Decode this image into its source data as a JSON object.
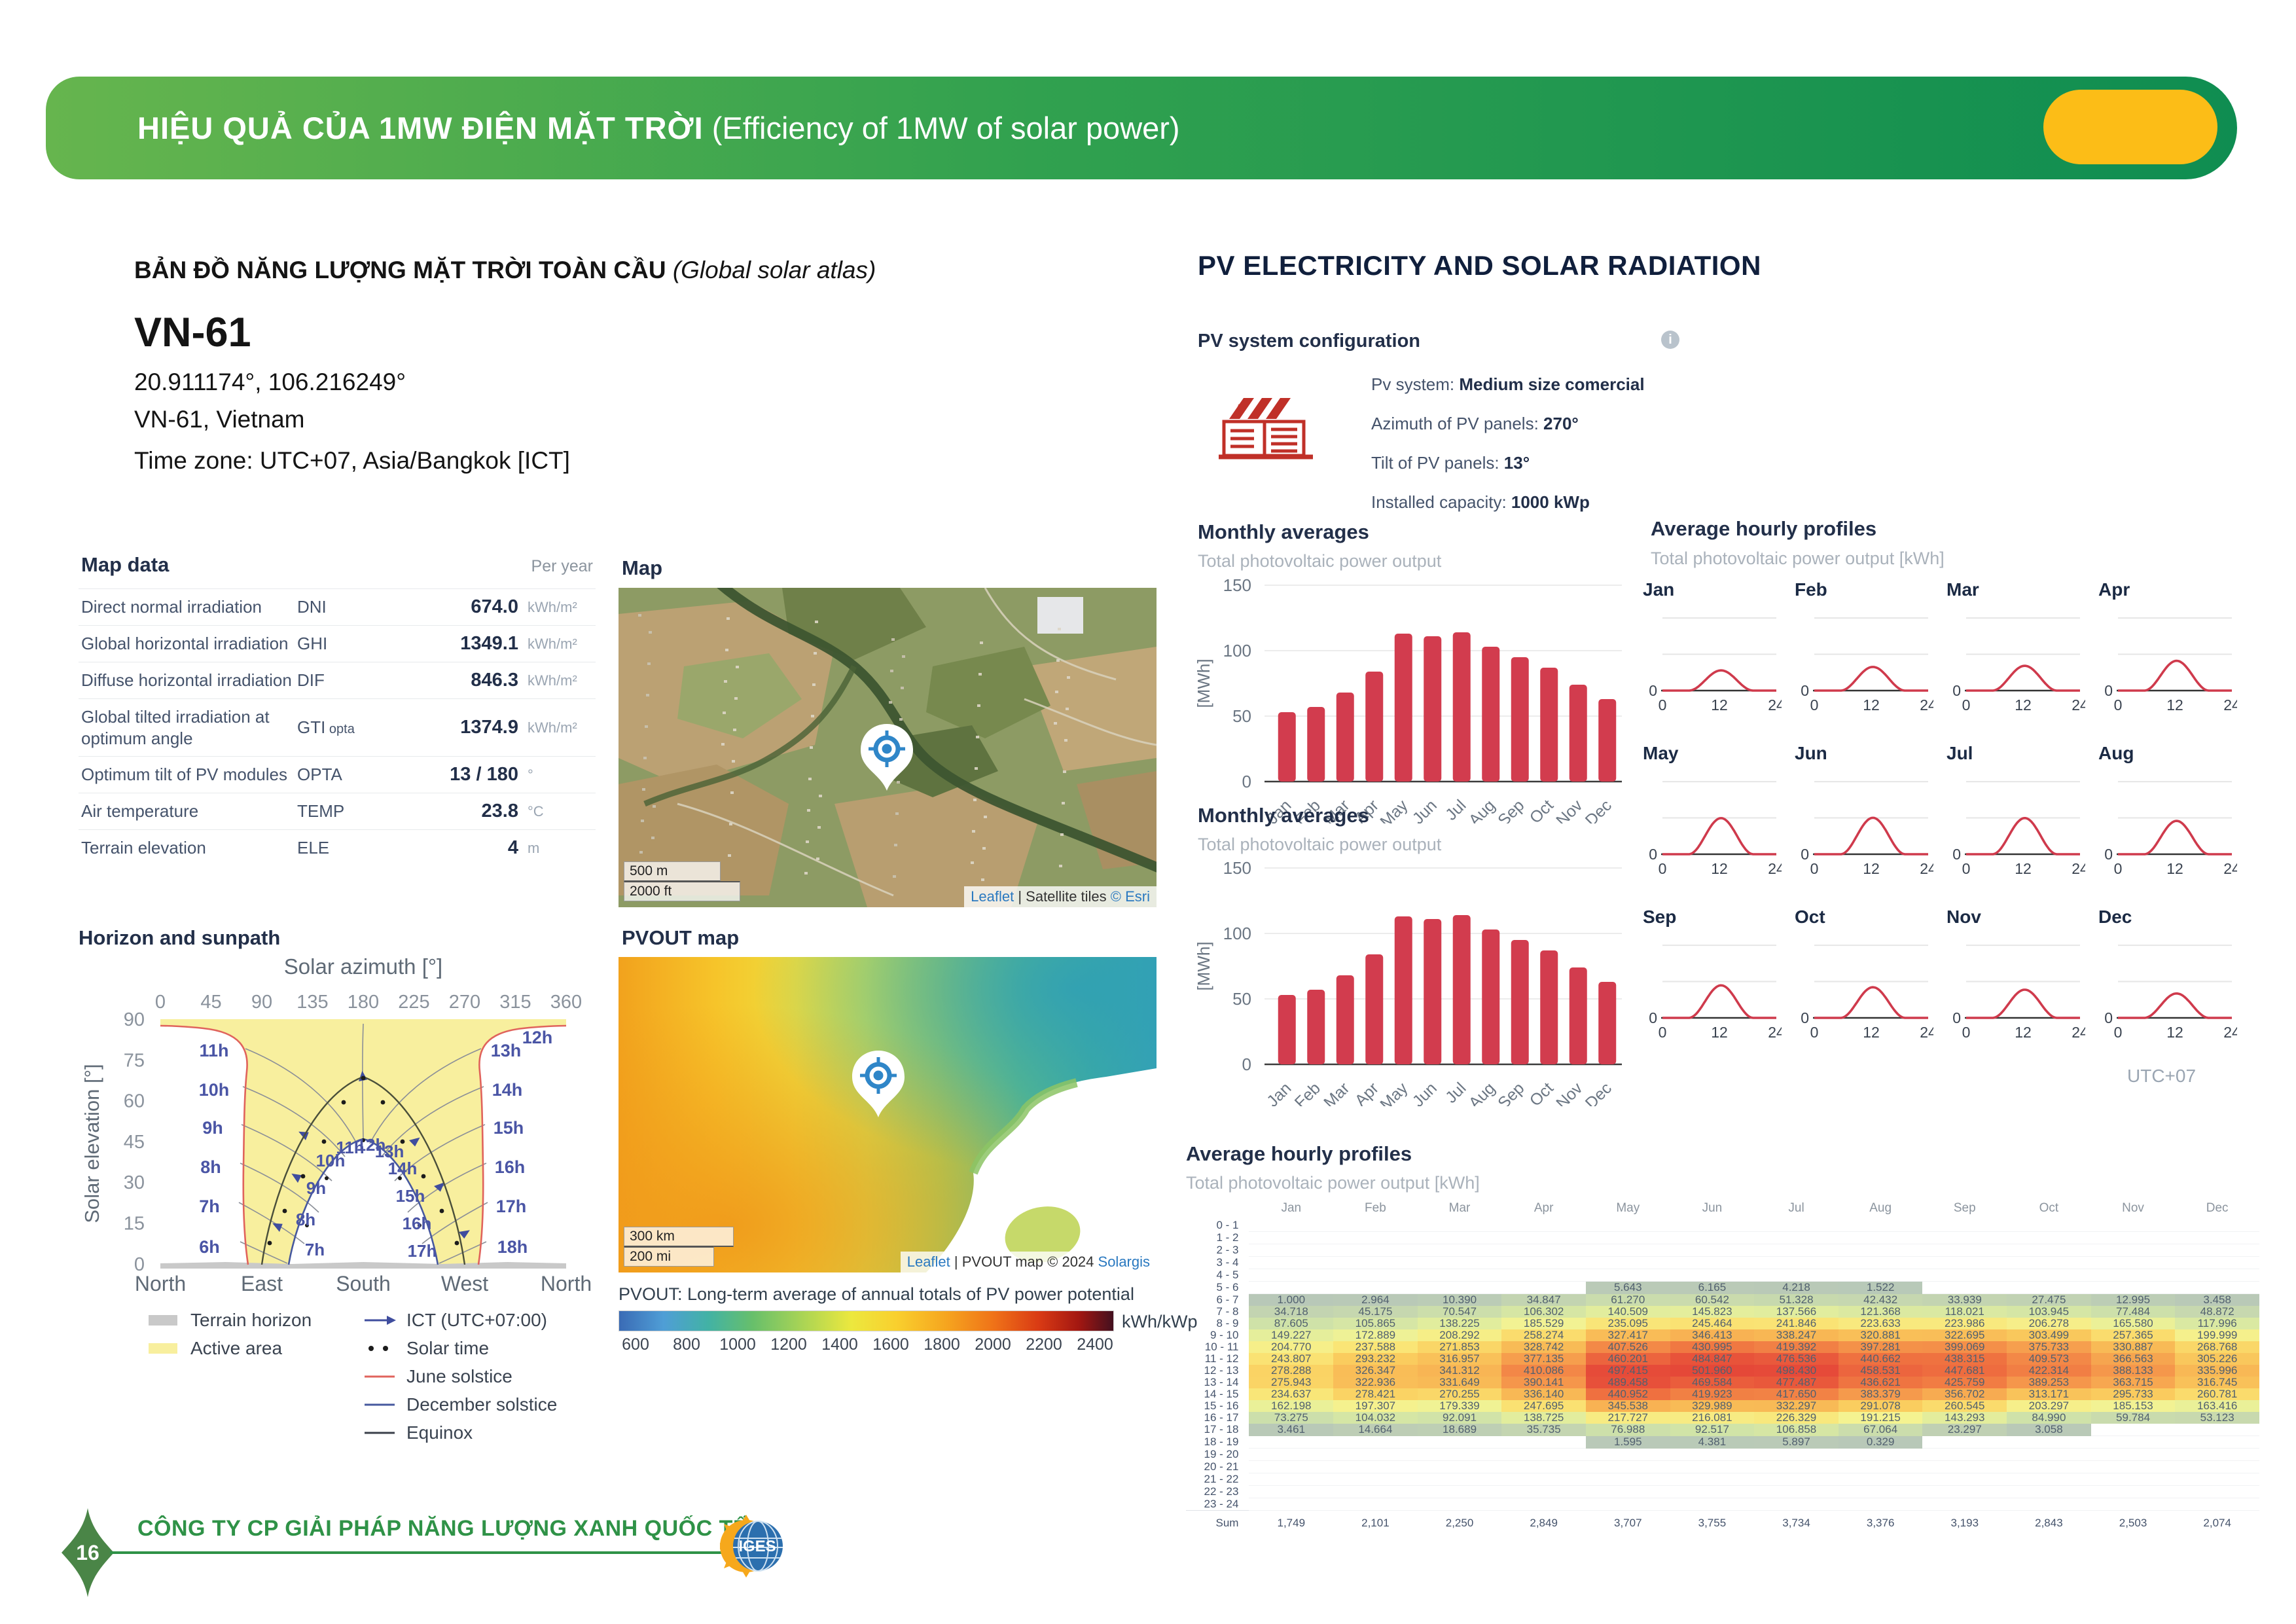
{
  "header": {
    "title_bold": "HIỆU QUẢ CỦA 1MW ĐIỆN MẶT TRỜI",
    "title_light": " (Efficiency of 1MW of solar power)"
  },
  "atlas": {
    "heading_bold": "BẢN ĐỒ NĂNG LƯỢNG MẶT TRỜI TOÀN CẦU",
    "heading_italic": " (Global solar atlas)",
    "site_id": "VN-61",
    "coordinates": "20.911174°, 106.216249°",
    "location": "VN-61, Vietnam",
    "timezone": "Time zone: UTC+07, Asia/Bangkok [ICT]"
  },
  "map_data": {
    "title": "Map data",
    "period": "Per year",
    "rows": [
      {
        "label": "Direct normal irradiation",
        "code": "DNI",
        "sub": "",
        "value": "674.0",
        "unit": "kWh/m²"
      },
      {
        "label": "Global horizontal irradiation",
        "code": "GHI",
        "sub": "",
        "value": "1349.1",
        "unit": "kWh/m²"
      },
      {
        "label": "Diffuse horizontal irradiation",
        "code": "DIF",
        "sub": "",
        "value": "846.3",
        "unit": "kWh/m²"
      },
      {
        "label": "Global tilted irradiation at optimum angle",
        "code": "GTI",
        "sub": "opta",
        "value": "1374.9",
        "unit": "kWh/m²"
      },
      {
        "label": "Optimum tilt of PV modules",
        "code": "OPTA",
        "sub": "",
        "value": "13 / 180",
        "unit": "°"
      },
      {
        "label": "Air temperature",
        "code": "TEMP",
        "sub": "",
        "value": "23.8",
        "unit": "°C"
      },
      {
        "label": "Terrain elevation",
        "code": "ELE",
        "sub": "",
        "value": "4",
        "unit": "m"
      }
    ]
  },
  "sunpath": {
    "title": "Horizon and sunpath",
    "xaxis_label": "Solar azimuth [°]",
    "yaxis_label": "Solar elevation [°]",
    "xticks": [
      "0",
      "45",
      "90",
      "135",
      "180",
      "225",
      "270",
      "315",
      "360"
    ],
    "yticks": [
      "90",
      "75",
      "60",
      "45",
      "30",
      "15",
      "0"
    ],
    "compass": [
      "North",
      "East",
      "South",
      "West",
      "North"
    ],
    "hours_left": [
      "6h",
      "7h",
      "8h",
      "9h",
      "10h",
      "11h"
    ],
    "hours_right": [
      "13h",
      "14h",
      "15h",
      "16h",
      "17h",
      "18h"
    ],
    "hour_top": "12h",
    "hours_inner": [
      "7h",
      "8h",
      "9h",
      "10h",
      "11h",
      "12h",
      "13h",
      "14h",
      "15h",
      "16h",
      "17h"
    ],
    "legend": [
      {
        "type": "swatch",
        "color": "#c9c9c9",
        "label": "Terrain horizon"
      },
      {
        "type": "swatch",
        "color": "#f8ef9e",
        "label": "Active area"
      },
      {
        "type": "arrow",
        "color": "#3f4d9e",
        "label": "ICT (UTC+07:00)"
      },
      {
        "type": "dots",
        "color": "#1c1c1c",
        "label": "Solar time"
      },
      {
        "type": "line",
        "color": "#e0635c",
        "label": "June solstice"
      },
      {
        "type": "line",
        "color": "#46589e",
        "label": "December solstice"
      },
      {
        "type": "line",
        "color": "#3a3f4a",
        "label": "Equinox"
      }
    ]
  },
  "map_panel": {
    "title": "Map",
    "scale_top": "500 m",
    "scale_bottom": "2000 ft",
    "attrib_link": "Leaflet",
    "attrib_mid": " | Satellite tiles ",
    "attrib_right": "© Esri"
  },
  "pvout_panel": {
    "title": "PVOUT map",
    "scale_top": "300 km",
    "scale_bottom": "200 mi",
    "attrib_link": "Leaflet",
    "attrib_mid": " | PVOUT map © 2024 ",
    "attrib_right": "Solargis",
    "caption": "PVOUT: Long-term average of annual totals of PV power potential",
    "unit": "kWh/kWp",
    "ticks": [
      "600",
      "800",
      "1000",
      "1200",
      "1400",
      "1600",
      "1800",
      "2000",
      "2200",
      "2400"
    ]
  },
  "pv_section": {
    "title": "PV ELECTRICITY AND SOLAR RADIATION",
    "config_title": "PV system configuration",
    "info_glyph": "i",
    "config": [
      {
        "label": "Pv system: ",
        "value": "Medium size comercial"
      },
      {
        "label": "Azimuth of PV panels: ",
        "value": "270°"
      },
      {
        "label": "Tilt of PV panels: ",
        "value": "13°"
      },
      {
        "label": "Installed capacity: ",
        "value": "1000 kWp"
      }
    ],
    "utc_note": "UTC+07"
  },
  "chart_data": [
    {
      "id": "monthly-averages-1",
      "type": "bar",
      "title": "Monthly averages",
      "subtitle": "Total photovoltaic power output",
      "ylabel": "[MWh]",
      "ylim": [
        0,
        150
      ],
      "yticks": [
        0,
        50,
        100,
        150
      ],
      "categories": [
        "Jan",
        "Feb",
        "Mar",
        "Apr",
        "May",
        "Jun",
        "Jul",
        "Aug",
        "Sep",
        "Oct",
        "Nov",
        "Dec"
      ],
      "values": [
        53,
        57,
        68,
        84,
        113,
        111,
        114,
        103,
        95,
        87,
        74,
        63
      ],
      "bar_color": "#d23c4e",
      "grid": true,
      "legend_position": "none"
    },
    {
      "id": "monthly-averages-2",
      "type": "bar",
      "title": "Monthly averages",
      "subtitle": "Total photovoltaic power output",
      "ylabel": "[MWh]",
      "ylim": [
        0,
        150
      ],
      "yticks": [
        0,
        50,
        100,
        150
      ],
      "categories": [
        "Jan",
        "Feb",
        "Mar",
        "Apr",
        "May",
        "Jun",
        "Jul",
        "Aug",
        "Sep",
        "Oct",
        "Nov",
        "Dec"
      ],
      "values": [
        53,
        57,
        68,
        84,
        113,
        111,
        114,
        103,
        95,
        87,
        74,
        63
      ],
      "bar_color": "#d23c4e",
      "grid": true,
      "legend_position": "none"
    },
    {
      "id": "hourly-profiles-mini",
      "type": "line",
      "title": "Average hourly profiles",
      "subtitle": "Total photovoltaic power output [kWh]",
      "months": [
        "Jan",
        "Feb",
        "Mar",
        "Apr",
        "May",
        "Jun",
        "Jul",
        "Aug",
        "Sep",
        "Oct",
        "Nov",
        "Dec"
      ],
      "x_ticks": [
        "0",
        "12",
        "24"
      ],
      "y_zero_label": "0",
      "xlim": [
        0,
        24
      ],
      "ylim": [
        0,
        1100
      ],
      "gridlines": [
        500,
        1000
      ],
      "peak_values_kwh": [
        278,
        326,
        341,
        410,
        497,
        502,
        498,
        459,
        448,
        422,
        388,
        336
      ],
      "line_color": "#cf3a4c"
    },
    {
      "id": "hourly-profiles-table",
      "type": "heatmap",
      "title": "Average hourly profiles",
      "subtitle": "Total photovoltaic power output [kWh]",
      "columns": [
        "Jan",
        "Feb",
        "Mar",
        "Apr",
        "May",
        "Jun",
        "Jul",
        "Aug",
        "Sep",
        "Oct",
        "Nov",
        "Dec"
      ],
      "row_labels": [
        "0 - 1",
        "1 - 2",
        "2 - 3",
        "3 - 4",
        "4 - 5",
        "5 - 6",
        "6 - 7",
        "7 - 8",
        "8 - 9",
        "9 - 10",
        "10 - 11",
        "11 - 12",
        "12 - 13",
        "13 - 14",
        "14 - 15",
        "15 - 16",
        "16 - 17",
        "17 - 18",
        "18 - 19",
        "19 - 20",
        "20 - 21",
        "21 - 22",
        "22 - 23",
        "23 - 24"
      ],
      "values": [
        [
          null,
          null,
          null,
          null,
          null,
          null,
          null,
          null,
          null,
          null,
          null,
          null
        ],
        [
          null,
          null,
          null,
          null,
          null,
          null,
          null,
          null,
          null,
          null,
          null,
          null
        ],
        [
          null,
          null,
          null,
          null,
          null,
          null,
          null,
          null,
          null,
          null,
          null,
          null
        ],
        [
          null,
          null,
          null,
          null,
          null,
          null,
          null,
          null,
          null,
          null,
          null,
          null
        ],
        [
          null,
          null,
          null,
          null,
          null,
          null,
          null,
          null,
          null,
          null,
          null,
          null
        ],
        [
          null,
          null,
          null,
          null,
          5.643,
          6.165,
          4.218,
          1.522,
          null,
          null,
          null,
          null
        ],
        [
          1.0,
          2.964,
          10.39,
          34.847,
          61.27,
          60.542,
          51.328,
          42.432,
          33.939,
          27.475,
          12.995,
          3.458
        ],
        [
          34.718,
          45.175,
          70.547,
          106.302,
          140.509,
          145.823,
          137.566,
          121.368,
          118.021,
          103.945,
          77.484,
          48.872
        ],
        [
          87.605,
          105.865,
          138.225,
          185.529,
          235.095,
          245.464,
          241.846,
          223.633,
          223.986,
          206.278,
          165.58,
          117.996
        ],
        [
          149.227,
          172.889,
          208.292,
          258.274,
          327.417,
          346.413,
          338.247,
          320.881,
          322.695,
          303.499,
          257.365,
          199.999
        ],
        [
          204.77,
          237.588,
          271.853,
          328.742,
          407.526,
          430.995,
          419.392,
          397.281,
          399.069,
          375.733,
          330.887,
          268.768
        ],
        [
          243.807,
          293.232,
          316.957,
          377.135,
          460.201,
          484.847,
          476.536,
          440.662,
          438.315,
          409.573,
          366.563,
          305.226
        ],
        [
          278.288,
          326.347,
          341.312,
          410.086,
          497.415,
          501.96,
          498.43,
          458.531,
          447.681,
          422.314,
          388.133,
          335.996
        ],
        [
          275.943,
          322.936,
          331.649,
          390.141,
          489.458,
          469.584,
          477.487,
          436.621,
          425.759,
          389.253,
          363.715,
          316.745
        ],
        [
          234.637,
          278.421,
          270.255,
          336.14,
          440.952,
          419.923,
          417.65,
          383.379,
          356.702,
          313.171,
          295.733,
          260.781
        ],
        [
          162.198,
          197.307,
          179.339,
          247.695,
          345.538,
          329.989,
          332.297,
          291.078,
          260.545,
          203.297,
          185.153,
          163.416
        ],
        [
          73.275,
          104.032,
          92.091,
          138.725,
          217.727,
          216.081,
          226.329,
          191.215,
          143.293,
          84.99,
          59.784,
          53.123
        ],
        [
          3.461,
          14.664,
          18.689,
          35.735,
          76.988,
          92.517,
          106.858,
          67.064,
          23.297,
          3.058,
          null,
          null
        ],
        [
          null,
          null,
          null,
          null,
          1.595,
          4.381,
          5.897,
          0.329,
          null,
          null,
          null,
          null
        ],
        [
          null,
          null,
          null,
          null,
          null,
          null,
          null,
          null,
          null,
          null,
          null,
          null
        ],
        [
          null,
          null,
          null,
          null,
          null,
          null,
          null,
          null,
          null,
          null,
          null,
          null
        ],
        [
          null,
          null,
          null,
          null,
          null,
          null,
          null,
          null,
          null,
          null,
          null,
          null
        ],
        [
          null,
          null,
          null,
          null,
          null,
          null,
          null,
          null,
          null,
          null,
          null,
          null
        ],
        [
          null,
          null,
          null,
          null,
          null,
          null,
          null,
          null,
          null,
          null,
          null,
          null
        ]
      ],
      "sum_label": "Sum",
      "sum": [
        "1,749",
        "2,101",
        "2,250",
        "2,849",
        "3,707",
        "3,755",
        "3,734",
        "3,376",
        "3,193",
        "2,843",
        "2,503",
        "2,074"
      ]
    }
  ],
  "footer": {
    "page_number": "16",
    "company": "CÔNG TY CP GIẢI PHÁP NĂNG LƯỢNG XANH QUỐC TẾ",
    "logo_text": "IGES"
  }
}
